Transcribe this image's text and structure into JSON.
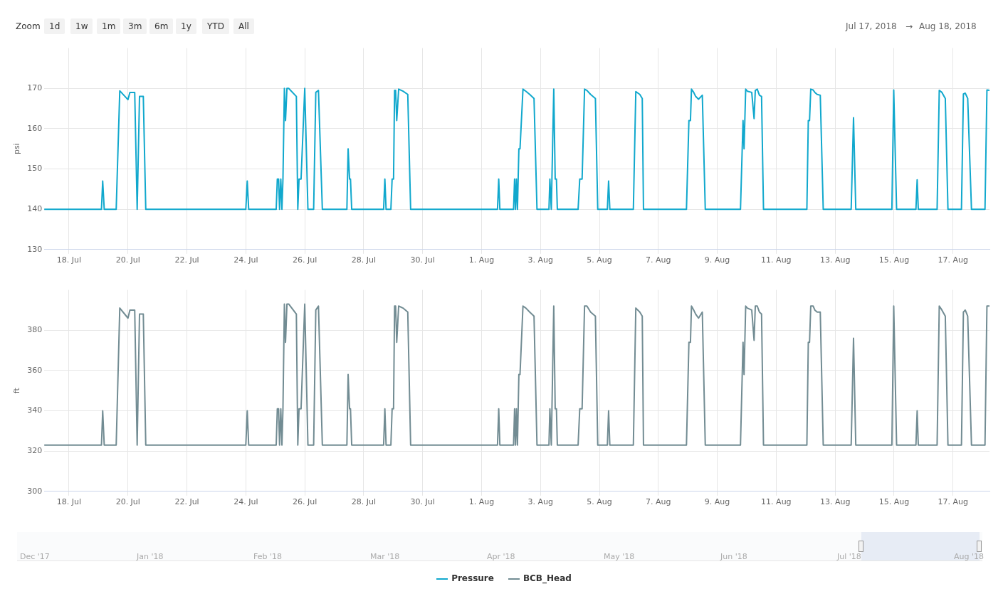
{
  "chart_data": [
    {
      "type": "other",
      "annotations": [
        "Zoom",
        "1d",
        "1w",
        "1m",
        "3m",
        "6m",
        "1y",
        "YTD",
        "All",
        "Jul 17, 2018",
        "→",
        "Aug 18, 2018"
      ]
    },
    {
      "type": "line",
      "ylabel": "psi",
      "grid": true,
      "legend": "bottom",
      "xlim": [
        "2018-07-17T03:50",
        "2018-08-18T05:45"
      ],
      "ylim": [
        130,
        180
      ],
      "yticks": [
        130,
        140,
        150,
        160,
        170
      ],
      "xticks": [
        {
          "value": "2018-07-18",
          "label": "18. Jul"
        },
        {
          "value": "2018-07-20",
          "label": "20. Jul"
        },
        {
          "value": "2018-07-22",
          "label": "22. Jul"
        },
        {
          "value": "2018-07-24",
          "label": "24. Jul"
        },
        {
          "value": "2018-07-26",
          "label": "26. Jul"
        },
        {
          "value": "2018-07-28",
          "label": "28. Jul"
        },
        {
          "value": "2018-07-30",
          "label": "30. Jul"
        },
        {
          "value": "2018-08-01",
          "label": "1. Aug"
        },
        {
          "value": "2018-08-03",
          "label": "3. Aug"
        },
        {
          "value": "2018-08-05",
          "label": "5. Aug"
        },
        {
          "value": "2018-08-07",
          "label": "7. Aug"
        },
        {
          "value": "2018-08-09",
          "label": "9. Aug"
        },
        {
          "value": "2018-08-11",
          "label": "11. Aug"
        },
        {
          "value": "2018-08-13",
          "label": "13. Aug"
        },
        {
          "value": "2018-08-15",
          "label": "15. Aug"
        },
        {
          "value": "2018-08-17",
          "label": "17. Aug"
        }
      ],
      "x": [
        "2018-07-17T03:50",
        "2018-07-19T02:25",
        "2018-07-19T03:25",
        "2018-07-19T04:40",
        "2018-07-19T14:25",
        "2018-07-19T17:20",
        "2018-07-20T00:00",
        "2018-07-20T01:35",
        "2018-07-20T05:30",
        "2018-07-20T07:30",
        "2018-07-20T09:25",
        "2018-07-20T12:30",
        "2018-07-20T14:30",
        "2018-07-24T00:00",
        "2018-07-24T01:10",
        "2018-07-24T02:20",
        "2018-07-25T00:45",
        "2018-07-25T01:40",
        "2018-07-25T02:40",
        "2018-07-25T03:30",
        "2018-07-25T04:30",
        "2018-07-25T05:25",
        "2018-07-25T06:15",
        "2018-07-25T07:25",
        "2018-07-25T08:20",
        "2018-07-25T09:30",
        "2018-07-25T10:55",
        "2018-07-25T17:10",
        "2018-07-25T18:20",
        "2018-07-25T19:20",
        "2018-07-25T21:00",
        "2018-07-26T00:00",
        "2018-07-26T02:35",
        "2018-07-26T07:15",
        "2018-07-26T09:00",
        "2018-07-26T11:10",
        "2018-07-26T14:20",
        "2018-07-27T10:20",
        "2018-07-27T11:20",
        "2018-07-27T12:30",
        "2018-07-27T13:15",
        "2018-07-27T14:15",
        "2018-07-28T16:15",
        "2018-07-28T17:15",
        "2018-07-28T18:15",
        "2018-07-28T22:10",
        "2018-07-28T23:10",
        "2018-07-29T00:20",
        "2018-07-29T01:10",
        "2018-07-29T02:00",
        "2018-07-29T02:55",
        "2018-07-29T04:30",
        "2018-07-29T08:00",
        "2018-07-29T11:55",
        "2018-07-29T14:15",
        "2018-08-01T13:00",
        "2018-08-01T14:00",
        "2018-08-01T14:55",
        "2018-08-02T02:05",
        "2018-08-02T02:55",
        "2018-08-02T03:40",
        "2018-08-02T04:25",
        "2018-08-02T05:15",
        "2018-08-02T06:25",
        "2018-08-02T07:20",
        "2018-08-02T09:45",
        "2018-08-02T12:05",
        "2018-08-02T15:15",
        "2018-08-02T18:45",
        "2018-08-02T21:10",
        "2018-08-03T06:55",
        "2018-08-03T07:40",
        "2018-08-03T08:50",
        "2018-08-03T10:50",
        "2018-08-03T12:00",
        "2018-08-03T13:00",
        "2018-08-03T13:45",
        "2018-08-04T06:40",
        "2018-08-04T08:00",
        "2018-08-04T09:55",
        "2018-08-04T11:55",
        "2018-08-04T13:50",
        "2018-08-04T16:50",
        "2018-08-04T20:45",
        "2018-08-04T22:40",
        "2018-08-05T06:30",
        "2018-08-05T07:30",
        "2018-08-05T08:30",
        "2018-08-06T03:40",
        "2018-08-06T05:40",
        "2018-08-06T08:55",
        "2018-08-06T10:55",
        "2018-08-06T11:55",
        "2018-08-07T22:55",
        "2018-08-08T00:55",
        "2018-08-08T02:10",
        "2018-08-08T03:00",
        "2018-08-08T04:50",
        "2018-08-08T06:25",
        "2018-08-08T08:45",
        "2018-08-08T11:50",
        "2018-08-08T14:15",
        "2018-08-09T18:55",
        "2018-08-09T21:00",
        "2018-08-09T21:50",
        "2018-08-09T23:10",
        "2018-08-10T00:30",
        "2018-08-10T04:05",
        "2018-08-10T06:00",
        "2018-08-10T07:00",
        "2018-08-10T08:35",
        "2018-08-10T10:20",
        "2018-08-10T12:05",
        "2018-08-10T13:40",
        "2018-08-12T01:00",
        "2018-08-12T02:10",
        "2018-08-12T03:10",
        "2018-08-12T04:10",
        "2018-08-12T06:05",
        "2018-08-12T07:30",
        "2018-08-12T09:25",
        "2018-08-12T11:55",
        "2018-08-12T14:20",
        "2018-08-13T13:05",
        "2018-08-13T15:00",
        "2018-08-13T16:50",
        "2018-08-14T22:15",
        "2018-08-14T23:45",
        "2018-08-15T02:05",
        "2018-08-15T17:50",
        "2018-08-15T18:50",
        "2018-08-15T19:45",
        "2018-08-16T11:05",
        "2018-08-16T12:50",
        "2018-08-16T15:00",
        "2018-08-16T17:45",
        "2018-08-16T19:55",
        "2018-08-17T06:55",
        "2018-08-17T08:30",
        "2018-08-17T10:00",
        "2018-08-17T12:00",
        "2018-08-17T15:05",
        "2018-08-18T02:05",
        "2018-08-18T03:40",
        "2018-08-18T05:40"
      ],
      "series": [
        {
          "name": "Pressure",
          "color": "#11a8cd",
          "values": [
            140,
            140,
            147,
            140,
            140,
            169.4,
            167.2,
            169,
            169,
            140,
            168,
            168,
            140,
            140,
            147,
            140,
            140,
            147.5,
            147.5,
            140,
            147.5,
            140,
            147.5,
            170,
            162,
            170,
            170,
            168,
            140,
            147.5,
            147.5,
            170,
            140,
            140,
            169,
            169.5,
            140,
            140,
            155,
            147.5,
            147.5,
            140,
            140,
            147.5,
            140,
            140,
            147.5,
            147.5,
            169.5,
            169.5,
            162,
            169.8,
            169.3,
            168.5,
            140,
            140,
            147.5,
            140,
            140,
            147.5,
            140,
            147.5,
            140,
            155,
            155,
            169.8,
            169.3,
            168.5,
            167.5,
            140,
            140,
            147.5,
            140,
            169.8,
            147.5,
            147.5,
            140,
            140,
            147.5,
            147.5,
            169.8,
            169.5,
            168.5,
            167.5,
            140,
            140,
            147,
            140,
            140,
            169.2,
            168.5,
            167.5,
            140,
            140,
            162,
            162,
            169.8,
            169,
            168,
            167.3,
            168.3,
            140,
            140,
            162,
            155,
            169.8,
            169.3,
            169,
            162.5,
            169.5,
            169.8,
            168.3,
            168,
            140,
            140,
            162,
            162,
            169.8,
            169.6,
            169,
            168.5,
            168.3,
            140,
            140,
            162.7,
            140,
            140,
            169.6,
            140,
            140,
            147.3,
            140,
            140,
            169.5,
            169,
            167.5,
            140,
            140,
            168.6,
            168.8,
            167.5,
            140,
            140,
            169.6,
            169.5
          ]
        }
      ]
    },
    {
      "type": "line",
      "ylabel": "ft",
      "grid": true,
      "legend": "bottom",
      "xlim": [
        "2018-07-17T03:50",
        "2018-08-18T05:45"
      ],
      "ylim": [
        300,
        400
      ],
      "yticks": [
        300,
        320,
        340,
        360,
        380
      ],
      "xticks": [
        {
          "value": "2018-07-18",
          "label": "18. Jul"
        },
        {
          "value": "2018-07-20",
          "label": "20. Jul"
        },
        {
          "value": "2018-07-22",
          "label": "22. Jul"
        },
        {
          "value": "2018-07-24",
          "label": "24. Jul"
        },
        {
          "value": "2018-07-26",
          "label": "26. Jul"
        },
        {
          "value": "2018-07-28",
          "label": "28. Jul"
        },
        {
          "value": "2018-07-30",
          "label": "30. Jul"
        },
        {
          "value": "2018-08-01",
          "label": "1. Aug"
        },
        {
          "value": "2018-08-03",
          "label": "3. Aug"
        },
        {
          "value": "2018-08-05",
          "label": "5. Aug"
        },
        {
          "value": "2018-08-07",
          "label": "7. Aug"
        },
        {
          "value": "2018-08-09",
          "label": "9. Aug"
        },
        {
          "value": "2018-08-11",
          "label": "11. Aug"
        },
        {
          "value": "2018-08-13",
          "label": "13. Aug"
        },
        {
          "value": "2018-08-15",
          "label": "15. Aug"
        },
        {
          "value": "2018-08-17",
          "label": "17. Aug"
        }
      ],
      "x": [
        "2018-07-17T03:50",
        "2018-07-19T02:25",
        "2018-07-19T03:25",
        "2018-07-19T04:40",
        "2018-07-19T14:25",
        "2018-07-19T17:20",
        "2018-07-20T00:00",
        "2018-07-20T01:35",
        "2018-07-20T05:30",
        "2018-07-20T07:30",
        "2018-07-20T09:25",
        "2018-07-20T12:30",
        "2018-07-20T14:30",
        "2018-07-24T00:00",
        "2018-07-24T01:10",
        "2018-07-24T02:20",
        "2018-07-25T00:45",
        "2018-07-25T01:40",
        "2018-07-25T02:40",
        "2018-07-25T03:30",
        "2018-07-25T04:30",
        "2018-07-25T05:25",
        "2018-07-25T06:15",
        "2018-07-25T07:25",
        "2018-07-25T08:20",
        "2018-07-25T09:30",
        "2018-07-25T10:55",
        "2018-07-25T17:10",
        "2018-07-25T18:20",
        "2018-07-25T19:20",
        "2018-07-25T21:00",
        "2018-07-26T00:00",
        "2018-07-26T02:35",
        "2018-07-26T07:15",
        "2018-07-26T09:00",
        "2018-07-26T11:10",
        "2018-07-26T14:20",
        "2018-07-27T10:20",
        "2018-07-27T11:20",
        "2018-07-27T12:30",
        "2018-07-27T13:15",
        "2018-07-27T14:15",
        "2018-07-28T16:15",
        "2018-07-28T17:15",
        "2018-07-28T18:15",
        "2018-07-28T22:10",
        "2018-07-28T23:10",
        "2018-07-29T00:20",
        "2018-07-29T01:10",
        "2018-07-29T02:00",
        "2018-07-29T02:55",
        "2018-07-29T04:30",
        "2018-07-29T08:00",
        "2018-07-29T11:55",
        "2018-07-29T14:15",
        "2018-08-01T13:00",
        "2018-08-01T14:00",
        "2018-08-01T14:55",
        "2018-08-02T02:05",
        "2018-08-02T02:55",
        "2018-08-02T03:40",
        "2018-08-02T04:25",
        "2018-08-02T05:15",
        "2018-08-02T06:25",
        "2018-08-02T07:20",
        "2018-08-02T09:45",
        "2018-08-02T12:05",
        "2018-08-02T15:15",
        "2018-08-02T18:45",
        "2018-08-02T21:10",
        "2018-08-03T06:55",
        "2018-08-03T07:40",
        "2018-08-03T08:50",
        "2018-08-03T10:50",
        "2018-08-03T12:00",
        "2018-08-03T13:00",
        "2018-08-03T13:45",
        "2018-08-04T06:40",
        "2018-08-04T08:00",
        "2018-08-04T09:55",
        "2018-08-04T11:55",
        "2018-08-04T13:50",
        "2018-08-04T16:50",
        "2018-08-04T20:45",
        "2018-08-04T22:40",
        "2018-08-05T06:30",
        "2018-08-05T07:30",
        "2018-08-05T08:30",
        "2018-08-06T03:40",
        "2018-08-06T05:40",
        "2018-08-06T08:55",
        "2018-08-06T10:55",
        "2018-08-06T11:55",
        "2018-08-07T22:55",
        "2018-08-08T00:55",
        "2018-08-08T02:10",
        "2018-08-08T03:00",
        "2018-08-08T04:50",
        "2018-08-08T06:25",
        "2018-08-08T08:45",
        "2018-08-08T11:50",
        "2018-08-08T14:15",
        "2018-08-09T18:55",
        "2018-08-09T21:00",
        "2018-08-09T21:50",
        "2018-08-09T23:10",
        "2018-08-10T00:30",
        "2018-08-10T04:05",
        "2018-08-10T06:00",
        "2018-08-10T07:00",
        "2018-08-10T08:35",
        "2018-08-10T10:20",
        "2018-08-10T12:05",
        "2018-08-10T13:40",
        "2018-08-12T01:00",
        "2018-08-12T02:10",
        "2018-08-12T03:10",
        "2018-08-12T04:10",
        "2018-08-12T06:05",
        "2018-08-12T07:30",
        "2018-08-12T09:25",
        "2018-08-12T11:55",
        "2018-08-12T14:20",
        "2018-08-13T13:05",
        "2018-08-13T15:00",
        "2018-08-13T16:50",
        "2018-08-14T22:15",
        "2018-08-14T23:45",
        "2018-08-15T02:05",
        "2018-08-15T17:50",
        "2018-08-15T18:50",
        "2018-08-15T19:45",
        "2018-08-16T11:05",
        "2018-08-16T12:50",
        "2018-08-16T15:00",
        "2018-08-16T17:45",
        "2018-08-16T19:55",
        "2018-08-17T06:55",
        "2018-08-17T08:30",
        "2018-08-17T10:00",
        "2018-08-17T12:00",
        "2018-08-17T15:05",
        "2018-08-18T02:05",
        "2018-08-18T03:40",
        "2018-08-18T05:40"
      ],
      "series": [
        {
          "name": "BCB_Head",
          "color": "#728c93",
          "values": [
            323,
            323,
            340,
            323,
            323,
            391,
            386,
            390,
            390,
            323,
            388,
            388,
            323,
            323,
            340,
            323,
            323,
            341,
            341,
            323,
            341,
            323,
            341,
            393,
            374,
            393,
            393,
            388,
            323,
            341,
            341,
            393,
            323,
            323,
            390,
            392,
            323,
            323,
            358,
            341,
            341,
            323,
            323,
            341,
            323,
            323,
            341,
            341,
            392,
            392,
            374,
            392,
            391,
            389,
            323,
            323,
            341,
            323,
            323,
            341,
            323,
            341,
            323,
            358,
            358,
            392,
            391,
            389,
            387,
            323,
            323,
            341,
            323,
            392,
            341,
            341,
            323,
            323,
            341,
            341,
            392,
            392,
            389,
            387,
            323,
            323,
            340,
            323,
            323,
            391,
            389,
            387,
            323,
            323,
            374,
            374,
            392,
            390,
            388,
            386,
            389,
            323,
            323,
            374,
            358,
            392,
            391,
            390,
            375,
            392,
            392,
            389,
            388,
            323,
            323,
            374,
            374,
            392,
            392,
            390,
            389,
            389,
            323,
            323,
            376,
            323,
            323,
            392,
            323,
            323,
            340,
            323,
            323,
            392,
            390,
            387,
            323,
            323,
            389,
            390,
            387,
            323,
            323,
            392,
            392
          ]
        }
      ]
    },
    {
      "type": "other",
      "annotations": [
        "Dec '17",
        "Jan '18",
        "Feb '18",
        "Mar '18",
        "Apr '18",
        "May '18",
        "Jun '18",
        "Jul '18",
        "Aug '18"
      ]
    }
  ]
}
